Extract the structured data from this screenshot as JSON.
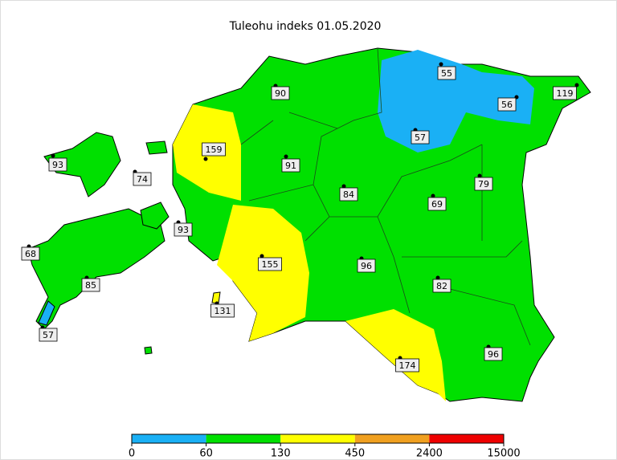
{
  "title": "Tuleohu indeks 01.05.2020",
  "stations": [
    90,
    55,
    56,
    119,
    159,
    57,
    93,
    74,
    91,
    84,
    69,
    79,
    93,
    68,
    155,
    96,
    82,
    85,
    131,
    57,
    174,
    96
  ],
  "legend": {
    "ticks": [
      0,
      60,
      130,
      450,
      2400,
      15000
    ],
    "colors": [
      "#1ab0f5",
      "#00e000",
      "#ffff00",
      "#f0a020",
      "#ee0000"
    ]
  }
}
